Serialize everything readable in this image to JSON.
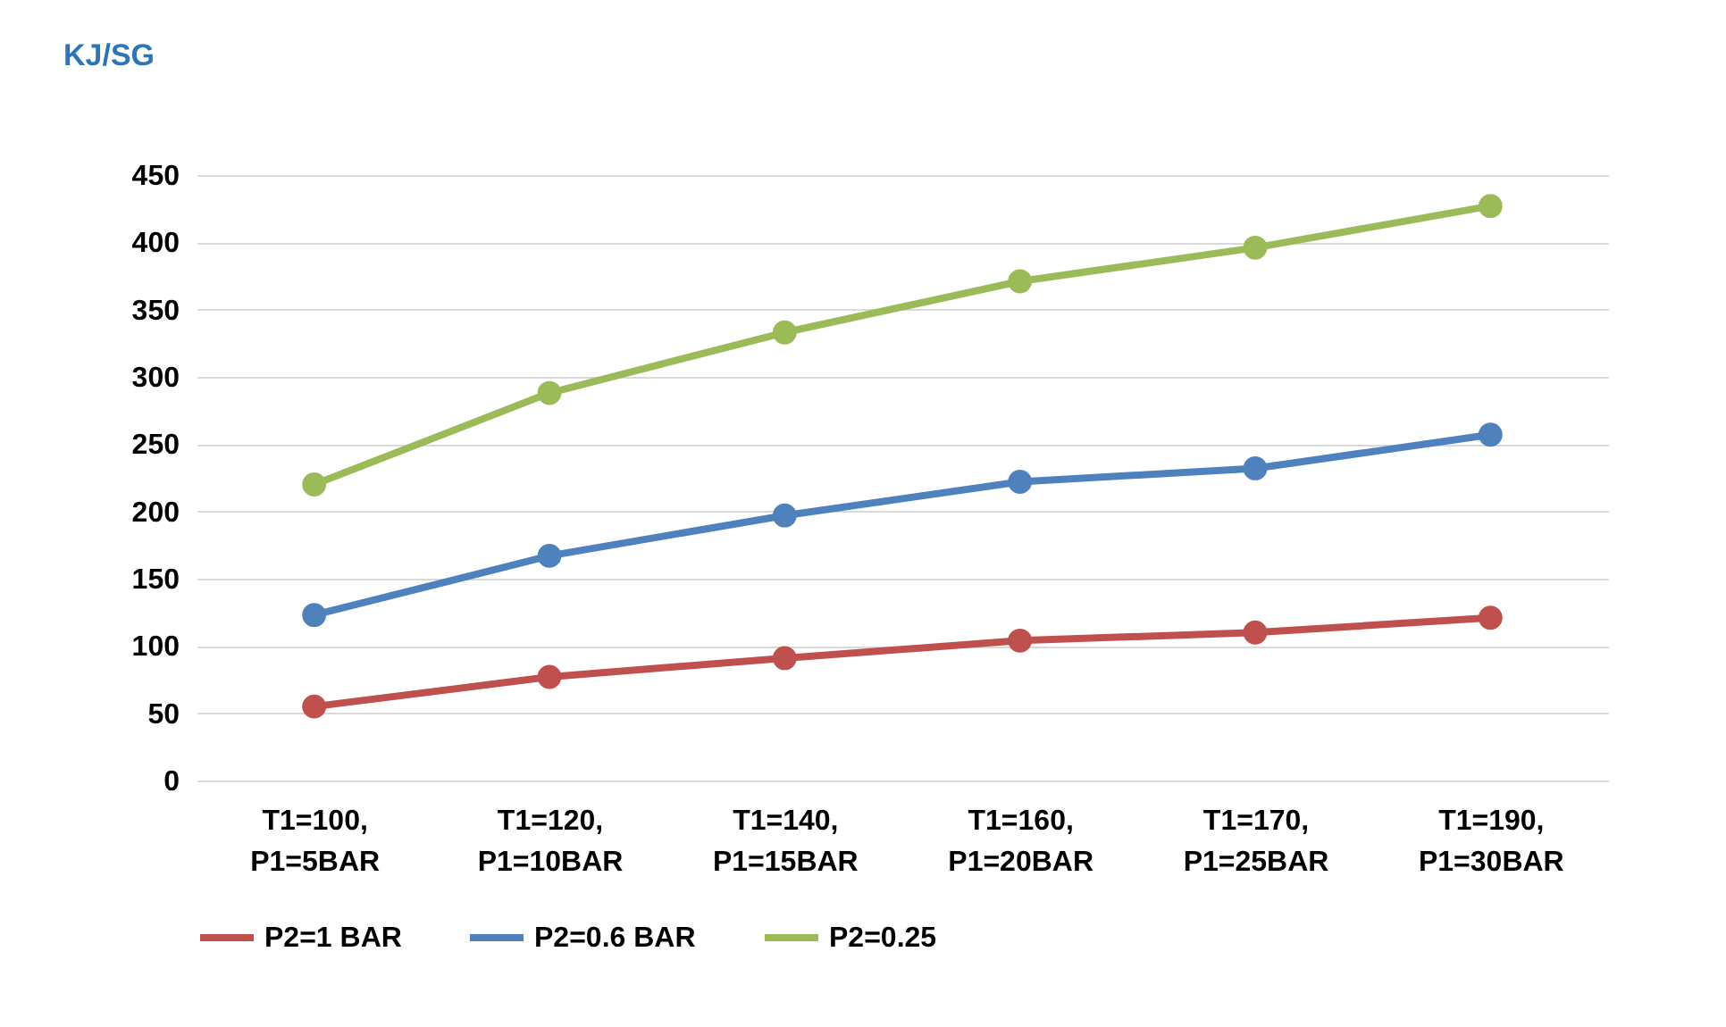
{
  "chart_data": {
    "type": "line",
    "ylabel": "KJ/SG",
    "categories": [
      "T1=100, P1=5BAR",
      "T1=120, P1=10BAR",
      "T1=140, P1=15BAR",
      "T1=160, P1=20BAR",
      "T1=170, P1=25BAR",
      "T1=190, P1=30BAR"
    ],
    "series": [
      {
        "name": "P2=1 BAR",
        "color": "#c0504d",
        "values": [
          55,
          77,
          91,
          104,
          110,
          121
        ]
      },
      {
        "name": "P2=0.6 BAR",
        "color": "#4f81bd",
        "values": [
          123,
          167,
          197,
          222,
          232,
          257
        ]
      },
      {
        "name": "P2=0.25",
        "color": "#9bbb59",
        "values": [
          220,
          288,
          333,
          371,
          396,
          427
        ]
      }
    ],
    "ylim": [
      0,
      450
    ],
    "yticks": [
      0,
      50,
      100,
      150,
      200,
      250,
      300,
      350,
      400,
      450
    ],
    "grid": "y",
    "legend": "bottom",
    "marker": "circle",
    "line_style": "solid"
  }
}
